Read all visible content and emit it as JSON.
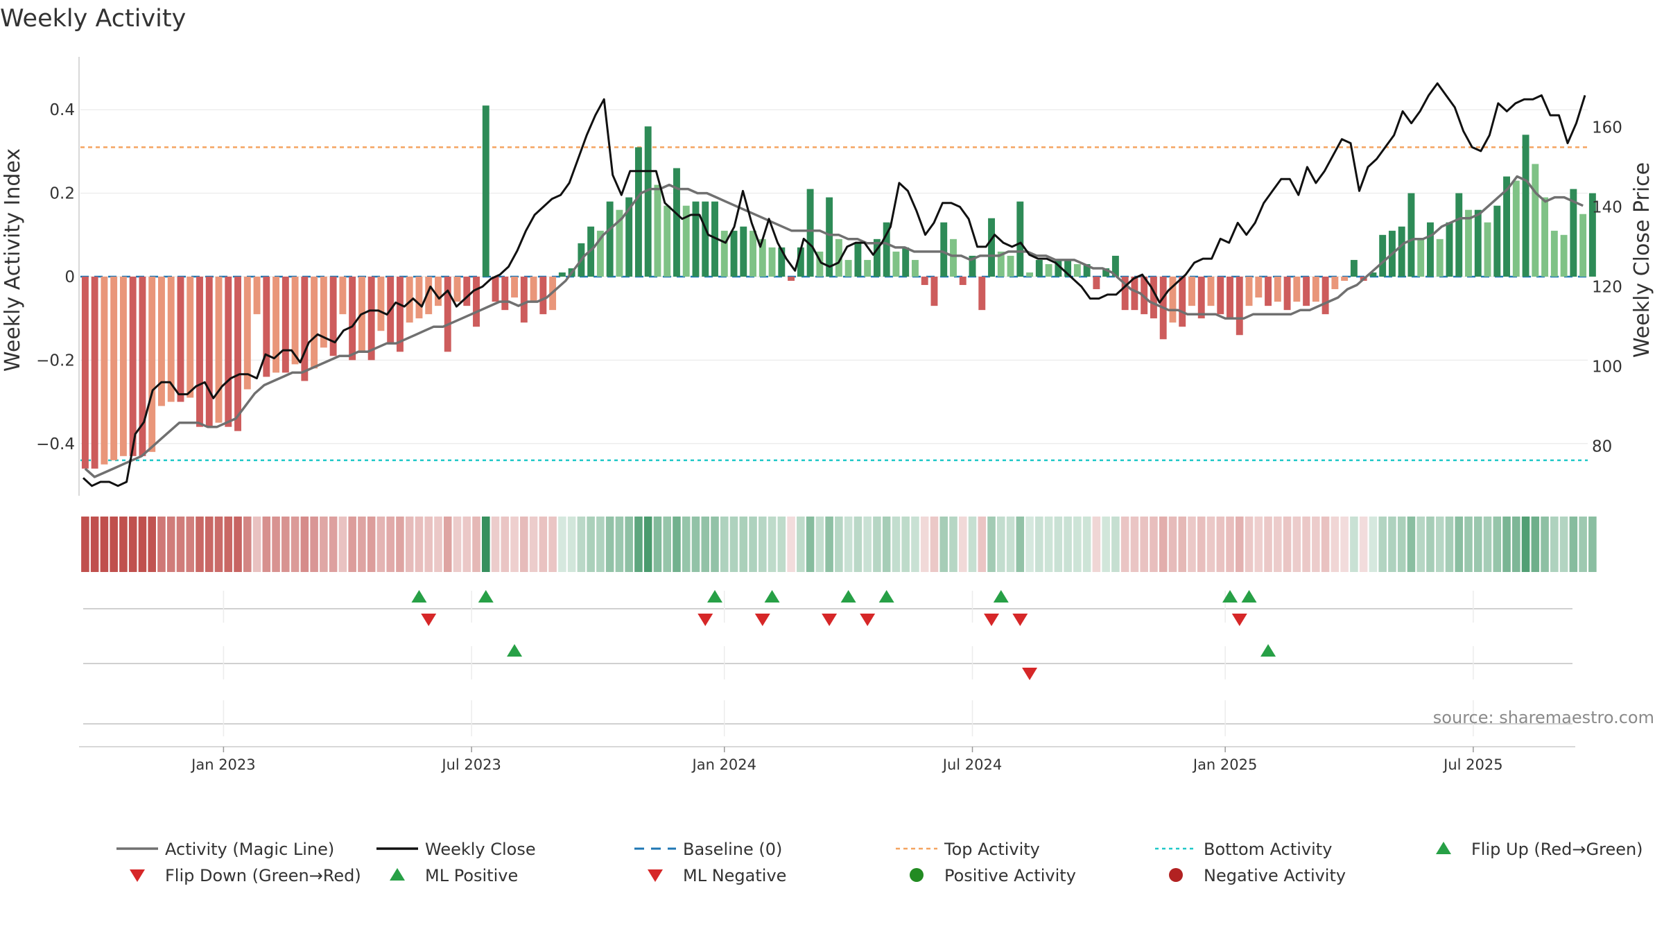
{
  "chart_data": {
    "type": "bar",
    "title": "Weekly Activity",
    "ylabel_left": "Weekly Activity Index",
    "ylabel_right": "Weekly Close Price",
    "ylim_left": [
      -0.53,
      0.53
    ],
    "ylim_right": [
      67,
      178
    ],
    "left_ticks": [
      {
        "v": 0.4,
        "label": "0.4"
      },
      {
        "v": 0.2,
        "label": "0.2"
      },
      {
        "v": 0,
        "label": "0"
      },
      {
        "v": -0.2,
        "label": "−0.2"
      },
      {
        "v": -0.4,
        "label": "−0.4"
      }
    ],
    "right_ticks": [
      {
        "v": 160,
        "label": "160"
      },
      {
        "v": 140,
        "label": "140"
      },
      {
        "v": 120,
        "label": "120"
      },
      {
        "v": 100,
        "label": "100"
      },
      {
        "v": 80,
        "label": "80"
      }
    ],
    "x_ticks": [
      {
        "week": 14.5,
        "label": "Jan 2023"
      },
      {
        "week": 40.5,
        "label": "Jul 2023"
      },
      {
        "week": 67,
        "label": "Jan 2024"
      },
      {
        "week": 93,
        "label": "Jul 2024"
      },
      {
        "week": 119.5,
        "label": "Jan 2025"
      },
      {
        "week": 145.5,
        "label": "Jul 2025"
      }
    ],
    "top_activity": 0.31,
    "bottom_activity": -0.44,
    "weeks": 158,
    "activity": [
      -0.46,
      -0.46,
      -0.45,
      -0.44,
      -0.43,
      -0.43,
      -0.43,
      -0.42,
      -0.31,
      -0.3,
      -0.3,
      -0.29,
      -0.36,
      -0.36,
      -0.35,
      -0.36,
      -0.37,
      -0.27,
      -0.09,
      -0.24,
      -0.23,
      -0.23,
      -0.21,
      -0.25,
      -0.22,
      -0.17,
      -0.19,
      -0.09,
      -0.2,
      -0.18,
      -0.2,
      -0.13,
      -0.16,
      -0.18,
      -0.11,
      -0.1,
      -0.09,
      -0.07,
      -0.18,
      -0.06,
      -0.07,
      -0.12,
      0.41,
      -0.06,
      -0.08,
      -0.05,
      -0.11,
      -0.06,
      -0.09,
      -0.08,
      0.01,
      0.02,
      0.08,
      0.12,
      0.11,
      0.18,
      0.16,
      0.19,
      0.31,
      0.36,
      0.22,
      0.17,
      0.26,
      0.17,
      0.18,
      0.18,
      0.18,
      0.11,
      0.11,
      0.12,
      0.11,
      0.09,
      0.07,
      0.07,
      -0.01,
      0.07,
      0.21,
      0.06,
      0.19,
      0.09,
      0.04,
      0.08,
      0.04,
      0.09,
      0.13,
      0.06,
      0.07,
      0.04,
      -0.02,
      -0.07,
      0.13,
      0.09,
      -0.02,
      0.05,
      -0.08,
      0.14,
      0.06,
      0.05,
      0.18,
      0.01,
      0.04,
      0.03,
      0.04,
      0.04,
      0.03,
      0.03,
      -0.03,
      0.02,
      0.05,
      -0.08,
      -0.08,
      -0.09,
      -0.1,
      -0.15,
      -0.11,
      -0.12,
      -0.07,
      -0.1,
      -0.07,
      -0.09,
      -0.1,
      -0.14,
      -0.07,
      -0.05,
      -0.07,
      -0.06,
      -0.08,
      -0.06,
      -0.07,
      -0.06,
      -0.09,
      -0.03,
      -0.01,
      0.04,
      -0.01,
      0.01,
      0.1,
      0.11,
      0.12,
      0.2,
      0.09,
      0.13,
      0.09,
      0.13,
      0.2,
      0.16,
      0.16,
      0.13,
      0.17,
      0.24,
      0.23,
      0.34,
      0.27,
      0.19,
      0.11,
      0.1,
      0.21,
      0.15,
      0.2
    ],
    "magic_line": [
      -0.46,
      -0.48,
      -0.47,
      -0.46,
      -0.45,
      -0.44,
      -0.43,
      -0.41,
      -0.39,
      -0.37,
      -0.35,
      -0.35,
      -0.35,
      -0.36,
      -0.36,
      -0.35,
      -0.34,
      -0.31,
      -0.28,
      -0.26,
      -0.25,
      -0.24,
      -0.23,
      -0.23,
      -0.22,
      -0.21,
      -0.2,
      -0.19,
      -0.19,
      -0.18,
      -0.18,
      -0.17,
      -0.16,
      -0.16,
      -0.15,
      -0.14,
      -0.13,
      -0.12,
      -0.12,
      -0.11,
      -0.1,
      -0.09,
      -0.08,
      -0.07,
      -0.06,
      -0.06,
      -0.07,
      -0.06,
      -0.06,
      -0.05,
      -0.03,
      -0.01,
      0.02,
      0.05,
      0.07,
      0.1,
      0.12,
      0.14,
      0.17,
      0.2,
      0.21,
      0.21,
      0.22,
      0.21,
      0.21,
      0.2,
      0.2,
      0.19,
      0.18,
      0.17,
      0.16,
      0.15,
      0.14,
      0.13,
      0.12,
      0.11,
      0.11,
      0.11,
      0.11,
      0.1,
      0.1,
      0.09,
      0.09,
      0.08,
      0.08,
      0.08,
      0.07,
      0.07,
      0.06,
      0.06,
      0.06,
      0.06,
      0.05,
      0.05,
      0.04,
      0.05,
      0.05,
      0.05,
      0.06,
      0.06,
      0.06,
      0.05,
      0.05,
      0.04,
      0.04,
      0.04,
      0.03,
      0.02,
      0.02,
      0.01,
      -0.01,
      -0.03,
      -0.04,
      -0.06,
      -0.07,
      -0.08,
      -0.08,
      -0.09,
      -0.09,
      -0.09,
      -0.09,
      -0.1,
      -0.1,
      -0.1,
      -0.09,
      -0.09,
      -0.09,
      -0.09,
      -0.09,
      -0.08,
      -0.08,
      -0.07,
      -0.06,
      -0.05,
      -0.03,
      -0.02,
      0.0,
      0.02,
      0.04,
      0.06,
      0.08,
      0.09,
      0.09,
      0.1,
      0.12,
      0.13,
      0.14,
      0.14,
      0.15,
      0.17,
      0.19,
      0.21,
      0.24,
      0.23,
      0.2,
      0.18,
      0.19,
      0.19,
      0.18,
      0.17
    ],
    "weekly_close": [
      72,
      70,
      71,
      71,
      70,
      71,
      83,
      86,
      94,
      96,
      96,
      93,
      93,
      95,
      96,
      92,
      95,
      97,
      98,
      98,
      97,
      103,
      102,
      104,
      104,
      101,
      106,
      108,
      107,
      106,
      109,
      110,
      113,
      114,
      114,
      113,
      116,
      115,
      117,
      115,
      120,
      117,
      119,
      115,
      117,
      119,
      120,
      122,
      123,
      125,
      129,
      134,
      138,
      140,
      142,
      143,
      146,
      152,
      158,
      163,
      167,
      148,
      143,
      149,
      149,
      149,
      149,
      141,
      139,
      137,
      138,
      138,
      133,
      132,
      131,
      135,
      144,
      136,
      130,
      137,
      131,
      127,
      124,
      132,
      130,
      126,
      125,
      126,
      130,
      131,
      131,
      128,
      131,
      135,
      146,
      144,
      139,
      133,
      136,
      141,
      141,
      140,
      137,
      130,
      130,
      133,
      131,
      130,
      131,
      128,
      127,
      127,
      126,
      124,
      122,
      120,
      117,
      117,
      118,
      118,
      120,
      122,
      123,
      120,
      116,
      119,
      121,
      123,
      126,
      127,
      127,
      132,
      131,
      136,
      133,
      136,
      141,
      144,
      147,
      147,
      143,
      150,
      146,
      149,
      153,
      157,
      156,
      144,
      150,
      152,
      155,
      158,
      164,
      161,
      164,
      168,
      171,
      168,
      165,
      159,
      155,
      154,
      158,
      166,
      164,
      166,
      167,
      167,
      168,
      163,
      163,
      156,
      161,
      168
    ],
    "barrier_step": 5,
    "flip_up": [
      35,
      42,
      66,
      72,
      80,
      84,
      96,
      120,
      122
    ],
    "flip_down": [
      36,
      65,
      71,
      78,
      82,
      95,
      98,
      121
    ],
    "ml_positive": [
      45,
      124
    ],
    "ml_negative": [
      99
    ],
    "source": "source: sharemaestro.com",
    "legend": [
      {
        "key": "magic",
        "label": "Activity (Magic Line)"
      },
      {
        "key": "close",
        "label": "Weekly Close"
      },
      {
        "key": "base",
        "label": "Baseline (0)"
      },
      {
        "key": "top",
        "label": "Top Activity"
      },
      {
        "key": "bottom",
        "label": "Bottom Activity"
      },
      {
        "key": "flipup",
        "label": "Flip Up (Red→Green)"
      },
      {
        "key": "flipdown",
        "label": "Flip Down (Green→Red)"
      },
      {
        "key": "mlpos",
        "label": "ML Positive"
      },
      {
        "key": "mlneg",
        "label": "ML Negative"
      },
      {
        "key": "posact",
        "label": "Positive Activity"
      },
      {
        "key": "negact",
        "label": "Negative Activity"
      }
    ],
    "colors": {
      "bar_pos_dark": "#2e8b57",
      "bar_pos_light": "#7fc286",
      "bar_neg_dark": "#cd5c5c",
      "bar_neg_light": "#e9967a",
      "magic": "#707070",
      "close": "#111111",
      "baseline": "#1f77b4",
      "top": "#f4a460",
      "bottom": "#1fc8c8",
      "flip_up": "#27a046",
      "flip_down": "#d62728",
      "pos_dot": "#228b22",
      "neg_dot": "#b22222",
      "grid": "#e6e6e6"
    }
  }
}
